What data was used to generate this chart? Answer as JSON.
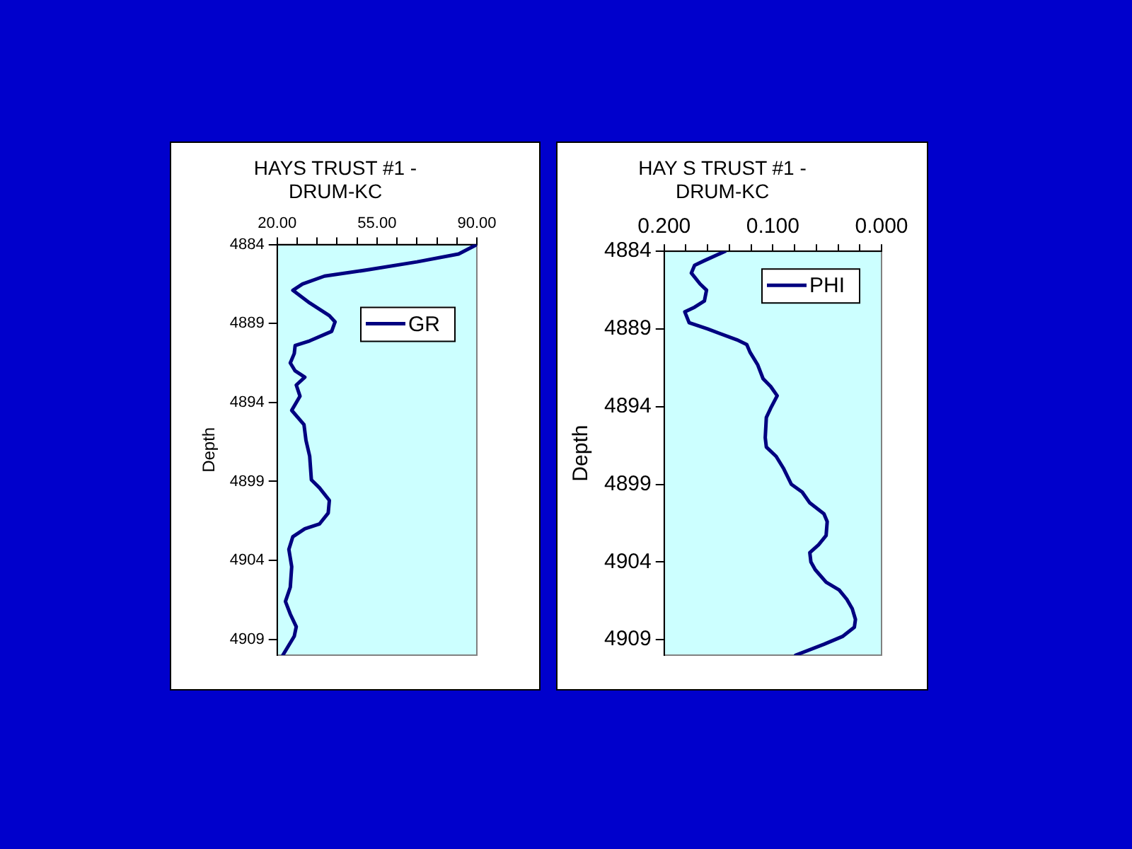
{
  "chart_data": [
    {
      "type": "line",
      "title": "HAYS TRUST #1 -\nDRUM-KC",
      "ylabel": "Depth",
      "legend": "top right",
      "grid": false,
      "xlim": [
        20,
        90
      ],
      "xticks": [
        {
          "value": 20,
          "label": "20.00"
        },
        {
          "value": 27,
          "label": null
        },
        {
          "value": 34,
          "label": null
        },
        {
          "value": 41,
          "label": null
        },
        {
          "value": 48,
          "label": null
        },
        {
          "value": 55,
          "label": "55.00"
        },
        {
          "value": 62,
          "label": null
        },
        {
          "value": 69,
          "label": null
        },
        {
          "value": 76,
          "label": null
        },
        {
          "value": 83,
          "label": null
        },
        {
          "value": 90,
          "label": "90.00"
        }
      ],
      "ylim": [
        4910,
        4884
      ],
      "yticks": [
        4884,
        4889,
        4894,
        4899,
        4904,
        4909
      ],
      "series": [
        {
          "name": "GR",
          "color": "#000080",
          "x": [
            90,
            83.6,
            69,
            51.9,
            36.6,
            28.9,
            25.5,
            31.4,
            38.3,
            40.3,
            39.1,
            31.4,
            26.3,
            26.0,
            24.6,
            26.3,
            29.7,
            26.7,
            28.0,
            25.1,
            29.4,
            30.1,
            31.4,
            32.0,
            34.8,
            38.3,
            37.9,
            34.8,
            29.7,
            25.5,
            24.1,
            25.1,
            24.6,
            22.9,
            24.6,
            26.7,
            26.0,
            22.0
          ],
          "values": [
            4884,
            4884.6,
            4885.1,
            4885.6,
            4886.0,
            4886.5,
            4886.9,
            4887.7,
            4888.5,
            4888.9,
            4889.5,
            4890.1,
            4890.4,
            4890.9,
            4891.5,
            4892.0,
            4892.4,
            4892.9,
            4893.6,
            4894.5,
            4895.4,
            4896.4,
            4897.4,
            4898.9,
            4899.4,
            4900.2,
            4901.0,
            4901.7,
            4902.0,
            4902.5,
            4903.3,
            4904.4,
            4905.7,
            4906.6,
            4907.4,
            4908.2,
            4908.8,
            4910
          ]
        }
      ]
    },
    {
      "type": "line",
      "title": "HAY S TRUST #1 -\nDRUM-KC",
      "ylabel": "Depth",
      "legend": "top right",
      "grid": false,
      "xlim": [
        0.2,
        0
      ],
      "xticks": [
        {
          "value": 0.2,
          "label": "0.200"
        },
        {
          "value": 0.18,
          "label": null
        },
        {
          "value": 0.16,
          "label": null
        },
        {
          "value": 0.14,
          "label": null
        },
        {
          "value": 0.12,
          "label": null
        },
        {
          "value": 0.1,
          "label": "0.100"
        },
        {
          "value": 0.08,
          "label": null
        },
        {
          "value": 0.06,
          "label": null
        },
        {
          "value": 0.04,
          "label": null
        },
        {
          "value": 0.02,
          "label": null
        },
        {
          "value": 0,
          "label": "0.000"
        }
      ],
      "ylim": [
        4910,
        4884
      ],
      "yticks": [
        4884,
        4889,
        4894,
        4899,
        4904,
        4909
      ],
      "series": [
        {
          "name": "PHI",
          "color": "#000080",
          "x": [
            0.144,
            0.163,
            0.172,
            0.175,
            0.167,
            0.161,
            0.163,
            0.172,
            0.181,
            0.177,
            0.16,
            0.133,
            0.124,
            0.121,
            0.114,
            0.109,
            0.102,
            0.096,
            0.102,
            0.106,
            0.107,
            0.106,
            0.097,
            0.09,
            0.083,
            0.073,
            0.066,
            0.053,
            0.05,
            0.051,
            0.058,
            0.066,
            0.065,
            0.061,
            0.051,
            0.039,
            0.032,
            0.027,
            0.024,
            0.025,
            0.036,
            0.053,
            0.079
          ],
          "values": [
            4884,
            4884.6,
            4884.9,
            4885.4,
            4886.1,
            4886.5,
            4887.2,
            4887.6,
            4887.9,
            4888.6,
            4889.0,
            4889.7,
            4890.0,
            4890.5,
            4891.3,
            4892.2,
            4892.7,
            4893.3,
            4894.1,
            4894.7,
            4896.0,
            4896.6,
            4897.2,
            4898.0,
            4899.0,
            4899.5,
            4900.2,
            4900.9,
            4901.4,
            4902.3,
            4902.9,
            4903.4,
            4904.0,
            4904.5,
            4905.3,
            4905.8,
            4906.4,
            4907.0,
            4907.7,
            4908.2,
            4908.8,
            4909.3,
            4910
          ]
        }
      ]
    }
  ]
}
